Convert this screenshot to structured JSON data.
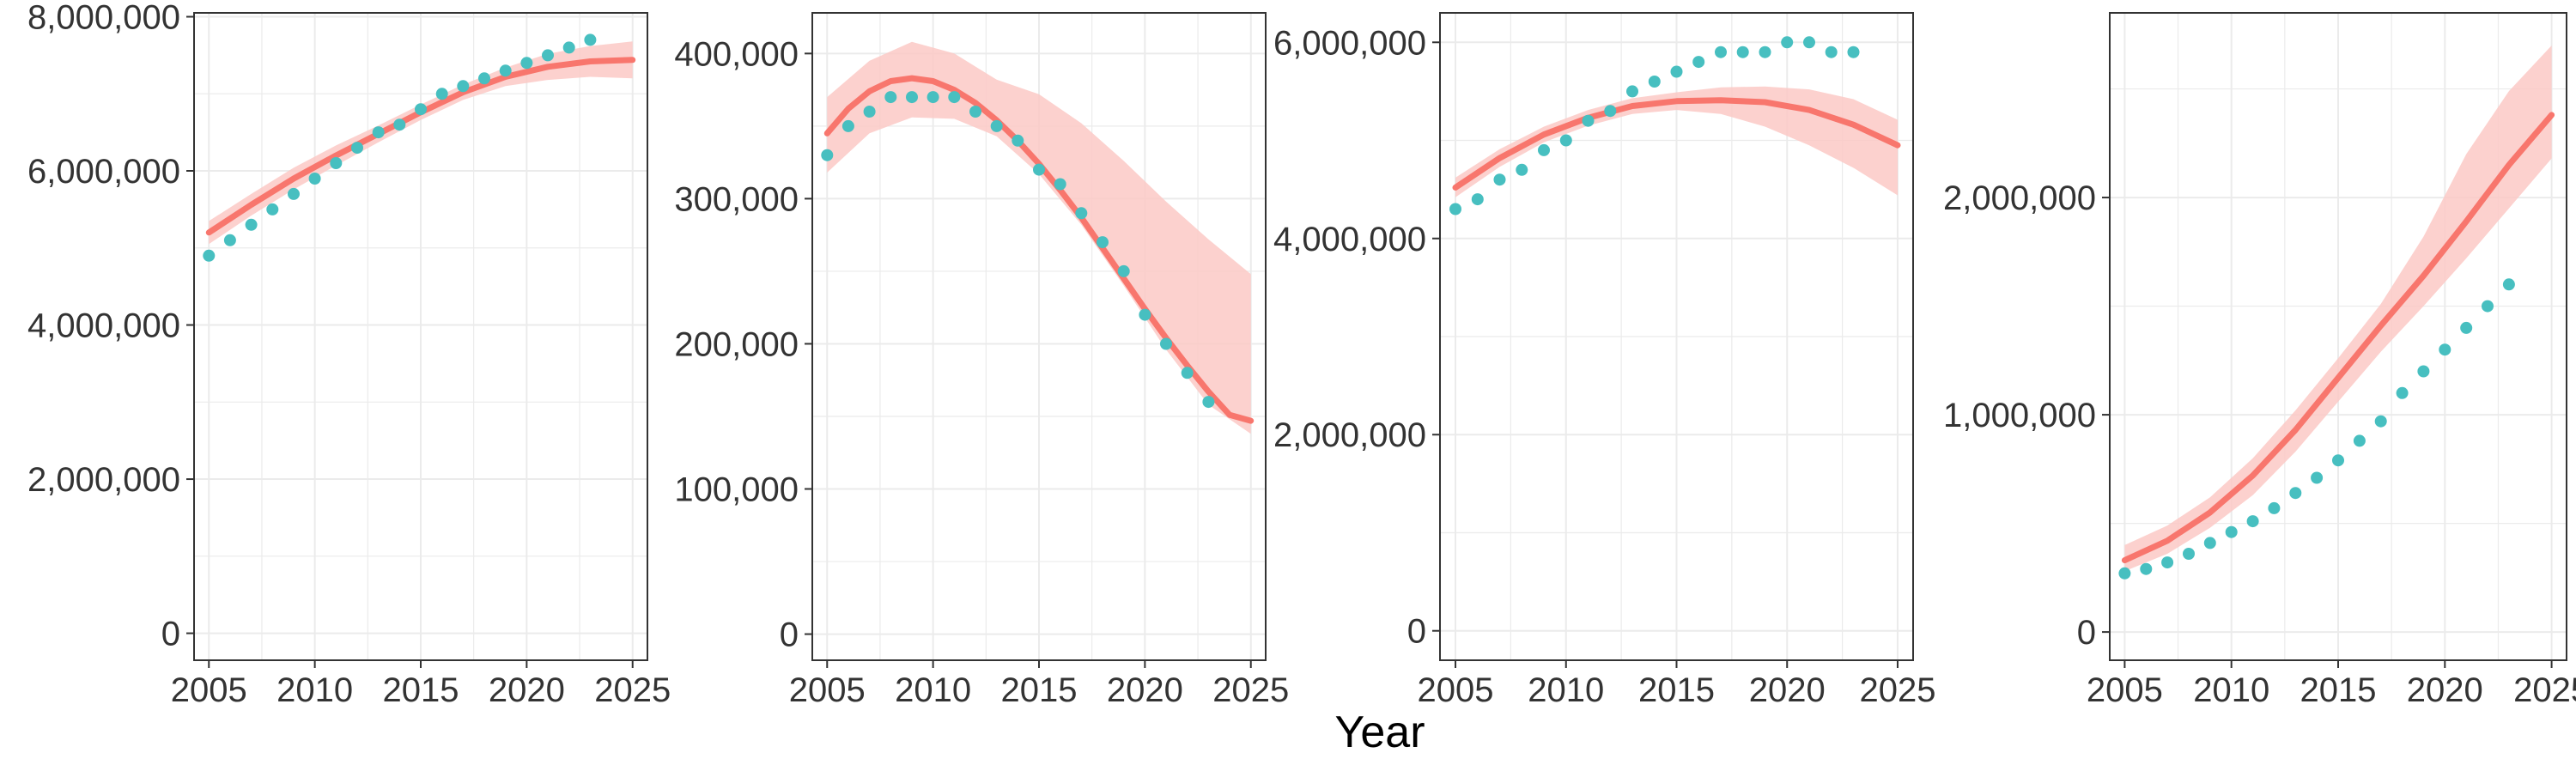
{
  "figure": {
    "xlabel": "Year",
    "colors": {
      "line": "#f8766d",
      "band": "#fbc9c6",
      "points": "#47bfc0",
      "grid": "#ebebeb",
      "frame": "#333333"
    },
    "panels": [
      {
        "xticks": [
          "2005",
          "2010",
          "2015",
          "2020",
          "2025"
        ],
        "yticks": [
          "0",
          "2,000,000",
          "4,000,000",
          "6,000,000",
          "8,000,000"
        ]
      },
      {
        "xticks": [
          "2005",
          "2010",
          "2015",
          "2020",
          "2025"
        ],
        "yticks": [
          "0",
          "100,000",
          "200,000",
          "300,000",
          "400,000"
        ]
      },
      {
        "xticks": [
          "2005",
          "2010",
          "2015",
          "2020",
          "2025"
        ],
        "yticks": [
          "0",
          "2,000,000",
          "4,000,000",
          "6,000,000"
        ]
      },
      {
        "xticks": [
          "2005",
          "2010",
          "2015",
          "2020",
          "2025"
        ],
        "yticks": [
          "0",
          "1,000,000",
          "2,000,000"
        ]
      }
    ]
  },
  "chart_data": [
    {
      "type": "line",
      "xlim": [
        2004.3,
        2025.7
      ],
      "ylim": [
        -350000,
        8050000
      ],
      "xticks": [
        2005,
        2010,
        2015,
        2020,
        2025
      ],
      "yticks": [
        0,
        2000000,
        4000000,
        6000000,
        8000000
      ],
      "grid": true,
      "series": [
        {
          "kind": "observed-points",
          "x": [
            2005,
            2006,
            2007,
            2008,
            2009,
            2010,
            2011,
            2012,
            2013,
            2014,
            2015,
            2016,
            2017,
            2018,
            2019,
            2020,
            2021,
            2022,
            2023
          ],
          "values": [
            4900000,
            5100000,
            5300000,
            5500000,
            5700000,
            5900000,
            6100000,
            6300000,
            6500000,
            6600000,
            6800000,
            7000000,
            7100000,
            7200000,
            7300000,
            7400000,
            7500000,
            7600000,
            7700000
          ]
        },
        {
          "kind": "fitted-line",
          "x": [
            2005,
            2007,
            2009,
            2011,
            2013,
            2015,
            2017,
            2019,
            2021,
            2023,
            2025
          ],
          "values": [
            5200000,
            5560000,
            5900000,
            6200000,
            6480000,
            6760000,
            7020000,
            7220000,
            7350000,
            7420000,
            7440000
          ]
        },
        {
          "kind": "confidence-band",
          "x": [
            2005,
            2007,
            2009,
            2011,
            2013,
            2015,
            2017,
            2019,
            2021,
            2023,
            2025
          ],
          "lower": [
            5050000,
            5420000,
            5760000,
            6070000,
            6370000,
            6660000,
            6920000,
            7100000,
            7180000,
            7220000,
            7200000
          ],
          "upper": [
            5350000,
            5700000,
            6040000,
            6330000,
            6590000,
            6860000,
            7120000,
            7340000,
            7520000,
            7620000,
            7680000
          ]
        }
      ]
    },
    {
      "type": "line",
      "xlim": [
        2004.3,
        2025.7
      ],
      "ylim": [
        -18000,
        428000
      ],
      "xticks": [
        2005,
        2010,
        2015,
        2020,
        2025
      ],
      "yticks": [
        0,
        100000,
        200000,
        300000,
        400000
      ],
      "grid": true,
      "series": [
        {
          "kind": "observed-points",
          "x": [
            2005,
            2006,
            2007,
            2008,
            2009,
            2010,
            2011,
            2012,
            2013,
            2014,
            2015,
            2016,
            2017,
            2018,
            2019,
            2020,
            2021,
            2022,
            2023
          ],
          "values": [
            330000,
            350000,
            360000,
            370000,
            370000,
            370000,
            370000,
            360000,
            350000,
            340000,
            320000,
            310000,
            290000,
            270000,
            250000,
            220000,
            200000,
            180000,
            160000
          ]
        },
        {
          "kind": "fitted-line",
          "x": [
            2005,
            2006,
            2007,
            2008,
            2009,
            2010,
            2011,
            2012,
            2013,
            2014,
            2015,
            2016,
            2017,
            2018,
            2019,
            2020,
            2021,
            2022,
            2023,
            2024,
            2025
          ],
          "values": [
            345000,
            362000,
            374000,
            381000,
            383000,
            381000,
            375000,
            366000,
            354000,
            340000,
            324000,
            306000,
            287000,
            266000,
            245000,
            224000,
            204000,
            185000,
            167000,
            151000,
            147000
          ]
        },
        {
          "kind": "confidence-band",
          "x": [
            2005,
            2007,
            2009,
            2011,
            2013,
            2015,
            2017,
            2019,
            2021,
            2023,
            2025
          ],
          "lower": [
            318000,
            345000,
            356000,
            355000,
            343000,
            317000,
            282000,
            240000,
            196000,
            158000,
            138000
          ],
          "upper": [
            370000,
            395000,
            408000,
            400000,
            382000,
            372000,
            352000,
            326000,
            298000,
            272000,
            248000
          ]
        }
      ]
    },
    {
      "type": "line",
      "xlim": [
        2004.3,
        2025.7
      ],
      "ylim": [
        -300000,
        6300000
      ],
      "xticks": [
        2005,
        2010,
        2015,
        2020,
        2025
      ],
      "yticks": [
        0,
        2000000,
        4000000,
        6000000
      ],
      "grid": true,
      "series": [
        {
          "kind": "observed-points",
          "x": [
            2005,
            2006,
            2007,
            2008,
            2009,
            2010,
            2011,
            2012,
            2013,
            2014,
            2015,
            2016,
            2017,
            2018,
            2019,
            2020,
            2021,
            2022,
            2023
          ],
          "values": [
            4300000,
            4400000,
            4600000,
            4700000,
            4900000,
            5000000,
            5200000,
            5300000,
            5500000,
            5600000,
            5700000,
            5800000,
            5900000,
            5900000,
            5900000,
            6000000,
            6000000,
            5900000,
            5900000
          ]
        },
        {
          "kind": "fitted-line",
          "x": [
            2005,
            2007,
            2009,
            2011,
            2013,
            2015,
            2017,
            2019,
            2021,
            2023,
            2025
          ],
          "values": [
            4520000,
            4820000,
            5060000,
            5230000,
            5350000,
            5400000,
            5410000,
            5390000,
            5310000,
            5160000,
            4950000
          ]
        },
        {
          "kind": "confidence-band",
          "x": [
            2005,
            2007,
            2009,
            2011,
            2013,
            2015,
            2017,
            2019,
            2021,
            2023,
            2025
          ],
          "lower": [
            4420000,
            4730000,
            4980000,
            5150000,
            5270000,
            5310000,
            5270000,
            5140000,
            4950000,
            4720000,
            4440000
          ],
          "upper": [
            4620000,
            4910000,
            5140000,
            5310000,
            5430000,
            5490000,
            5540000,
            5550000,
            5520000,
            5420000,
            5210000
          ]
        }
      ]
    },
    {
      "type": "line",
      "xlim": [
        2004.3,
        2025.7
      ],
      "ylim": [
        -130000,
        2850000
      ],
      "xticks": [
        2005,
        2010,
        2015,
        2020,
        2025
      ],
      "yticks": [
        0,
        1000000,
        2000000
      ],
      "grid": true,
      "series": [
        {
          "kind": "observed-points",
          "x": [
            2005,
            2006,
            2007,
            2008,
            2009,
            2010,
            2011,
            2012,
            2013,
            2014,
            2015,
            2016,
            2017,
            2018,
            2019,
            2020,
            2021,
            2022,
            2023
          ],
          "values": [
            270000,
            290000,
            320000,
            360000,
            410000,
            460000,
            510000,
            570000,
            640000,
            710000,
            790000,
            880000,
            970000,
            1100000,
            1200000,
            1300000,
            1400000,
            1500000,
            1600000
          ]
        },
        {
          "kind": "fitted-line",
          "x": [
            2005,
            2007,
            2009,
            2011,
            2013,
            2015,
            2017,
            2019,
            2021,
            2023,
            2025
          ],
          "values": [
            330000,
            420000,
            550000,
            720000,
            930000,
            1170000,
            1410000,
            1640000,
            1890000,
            2150000,
            2380000
          ]
        },
        {
          "kind": "confidence-band",
          "x": [
            2005,
            2007,
            2009,
            2011,
            2013,
            2015,
            2017,
            2019,
            2021,
            2023,
            2025
          ],
          "lower": [
            280000,
            360000,
            480000,
            630000,
            830000,
            1060000,
            1290000,
            1500000,
            1720000,
            1950000,
            2180000
          ],
          "upper": [
            400000,
            490000,
            620000,
            800000,
            1020000,
            1260000,
            1510000,
            1820000,
            2200000,
            2490000,
            2700000
          ]
        }
      ]
    }
  ]
}
